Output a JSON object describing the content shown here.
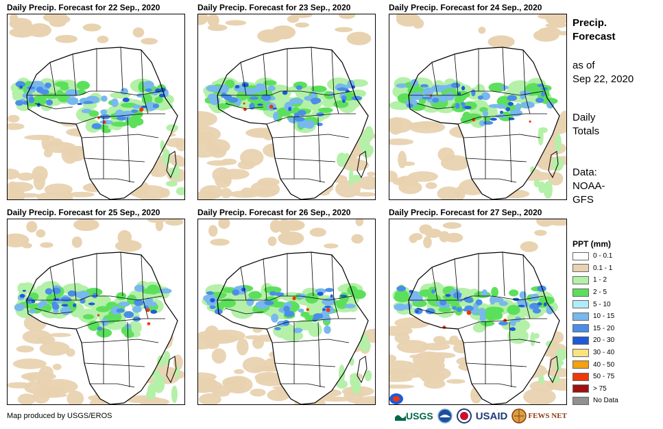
{
  "panels": [
    {
      "title": "Daily Precip. Forecast for 22  Sep., 2020",
      "intensity": 1.0
    },
    {
      "title": "Daily Precip. Forecast for 23  Sep., 2020",
      "intensity": 1.1
    },
    {
      "title": "Daily Precip. Forecast for 24  Sep., 2020",
      "intensity": 1.0
    },
    {
      "title": "Daily Precip. Forecast for 25  Sep., 2020",
      "intensity": 0.95
    },
    {
      "title": "Daily Precip. Forecast for 26  Sep., 2020",
      "intensity": 0.9
    },
    {
      "title": "Daily Precip. Forecast for 27  Sep., 2020",
      "intensity": 1.05
    }
  ],
  "sidebar": {
    "title_line1": "Precip.",
    "title_line2": "Forecast",
    "asof_line1": "as of",
    "asof_line2": "Sep 22, 2020",
    "totals_line1": "Daily",
    "totals_line2": "Totals",
    "data_line1": "Data:",
    "data_line2": "NOAA-",
    "data_line3": "GFS"
  },
  "legend": {
    "title": "PPT (mm)",
    "items": [
      {
        "label": "0 - 0.1",
        "color": "#ffffff"
      },
      {
        "label": "0.1 - 1",
        "color": "#e8d2b0"
      },
      {
        "label": "1 - 2",
        "color": "#b4f0a8"
      },
      {
        "label": "2 - 5",
        "color": "#5ce05c"
      },
      {
        "label": "5 - 10",
        "color": "#b0ecf8"
      },
      {
        "label": "10 - 15",
        "color": "#78b8ec"
      },
      {
        "label": "15 - 20",
        "color": "#4a8ee8"
      },
      {
        "label": "20 - 30",
        "color": "#1e5ad8"
      },
      {
        "label": "30 - 40",
        "color": "#f8e480"
      },
      {
        "label": "40 - 50",
        "color": "#f4a010"
      },
      {
        "label": "50 - 75",
        "color": "#f03808"
      },
      {
        "label": "> 75",
        "color": "#a01010"
      },
      {
        "label": "No Data",
        "color": "#909090"
      }
    ]
  },
  "footer": {
    "credit": "Map produced by USGS/EROS",
    "logos": {
      "usgs": "USGS",
      "usaid": "USAID",
      "fews": "FEWS NET"
    }
  }
}
